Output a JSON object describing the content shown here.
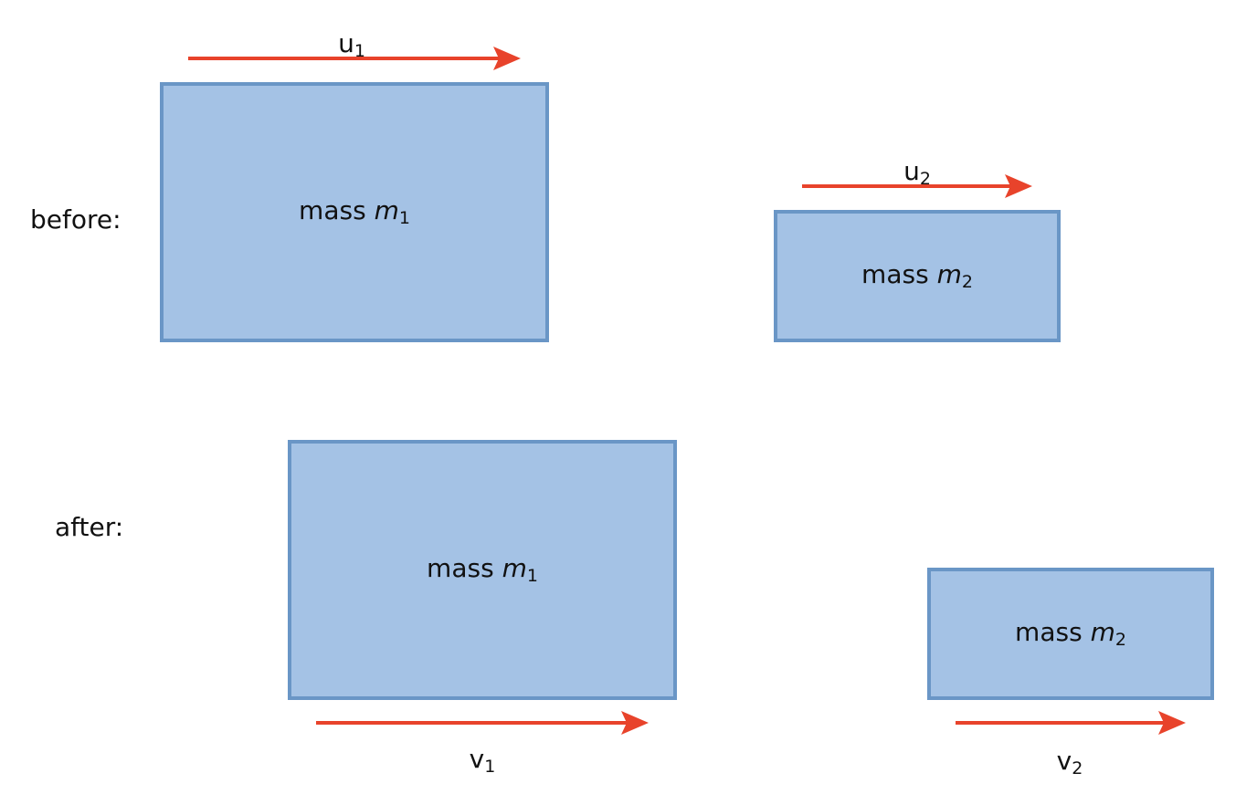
{
  "colors": {
    "box_fill": "#a4c2e5",
    "box_border": "#6a96c6",
    "arrow": "#e8432b",
    "text": "#111111"
  },
  "rows": {
    "before_label": "before:",
    "after_label": "after:"
  },
  "before": {
    "mass1": {
      "prefix": "mass",
      "symbol": "m",
      "subscript": "1"
    },
    "mass2": {
      "prefix": "mass",
      "symbol": "m",
      "subscript": "2"
    },
    "velocity1": {
      "symbol": "u",
      "subscript": "1"
    },
    "velocity2": {
      "symbol": "u",
      "subscript": "2"
    }
  },
  "after": {
    "mass1": {
      "prefix": "mass",
      "symbol": "m",
      "subscript": "1"
    },
    "mass2": {
      "prefix": "mass",
      "symbol": "m",
      "subscript": "2"
    },
    "velocity1": {
      "symbol": "v",
      "subscript": "1"
    },
    "velocity2": {
      "symbol": "v",
      "subscript": "2"
    }
  }
}
